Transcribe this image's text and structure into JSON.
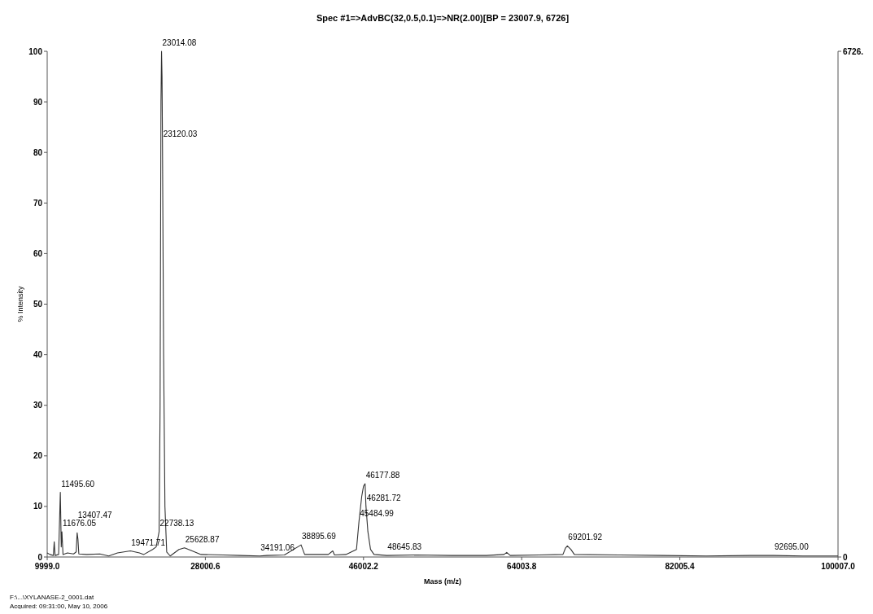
{
  "chart_data": {
    "type": "line",
    "title": "Spec #1=>AdvBC(32,0.5,0.1)=>NR(2.00)[BP = 23007.9, 6726]",
    "xlabel": "Mass (m/z)",
    "ylabel": "% Intensity",
    "x": [
      9999,
      10300,
      10700,
      10800,
      10900,
      11300,
      11495.6,
      11600,
      11676,
      11800,
      12300,
      13000,
      13300,
      13407,
      13500,
      13600,
      14500,
      16000,
      17000,
      18000,
      19471,
      20500,
      21000,
      22000,
      22400,
      22738,
      22850,
      22950,
      23014.08,
      23070,
      23120,
      23250,
      23400,
      23600,
      24000,
      25000,
      25628,
      26500,
      27500,
      30000,
      32000,
      34191,
      35000,
      37000,
      38895,
      39300,
      42000,
      42500,
      42700,
      44000,
      45200,
      45485,
      45800,
      46000,
      46177.88,
      46281.72,
      46500,
      46800,
      47200,
      48645,
      52000,
      56000,
      60000,
      62000,
      62300,
      62700,
      66000,
      68700,
      69000,
      69201.92,
      69600,
      70000,
      75000,
      80000,
      85000,
      90000,
      92695,
      96000,
      100007
    ],
    "series": [
      {
        "color": "#333333",
        "values": [
          0.8,
          0.5,
          0.3,
          3,
          0.3,
          0.5,
          12.8,
          2,
          5,
          0.5,
          0.8,
          0.6,
          1,
          4.8,
          3.5,
          0.6,
          0.5,
          0.6,
          0.2,
          0.8,
          1.2,
          0.8,
          0.5,
          1.5,
          2,
          5,
          30,
          90,
          100,
          95,
          82,
          40,
          10,
          1,
          0.2,
          1.5,
          1.8,
          1.2,
          0.5,
          0.4,
          0.3,
          0.2,
          0.3,
          0.4,
          2.4,
          0.5,
          0.5,
          1.2,
          0.4,
          0.5,
          1.5,
          7,
          12,
          14,
          14.5,
          10,
          5,
          1.5,
          0.5,
          0.3,
          0.4,
          0.3,
          0.3,
          0.5,
          0.9,
          0.3,
          0.4,
          0.5,
          1.8,
          2.2,
          1.5,
          0.5,
          0.4,
          0.3,
          0.2,
          0.3,
          0.3,
          0.2,
          0.2
        ]
      }
    ],
    "xlim": [
      9999,
      100007
    ],
    "xticks": [
      {
        "value": 9999,
        "label": "9999.0"
      },
      {
        "value": 28000.6,
        "label": "28000.6"
      },
      {
        "value": 46002.2,
        "label": "46002.2"
      },
      {
        "value": 64003.8,
        "label": "64003.8"
      },
      {
        "value": 82005.4,
        "label": "82005.4"
      },
      {
        "value": 100007,
        "label": "100007.0"
      }
    ],
    "ylim": [
      0,
      100
    ],
    "yticks": [
      0,
      10,
      20,
      30,
      40,
      50,
      60,
      70,
      80,
      90,
      100
    ],
    "y2lim": [
      0,
      6726
    ],
    "y2ticks": [
      0,
      {
        "value": 6726,
        "label": "6726."
      }
    ],
    "grid": false,
    "annotations": [
      {
        "text": "23014.08",
        "x": 23014.08,
        "y": 100
      },
      {
        "text": "23120.03",
        "x": 23120.03,
        "y": 82
      },
      {
        "text": "22738.13",
        "x": 22738.13,
        "y": 5
      },
      {
        "text": "11495.60",
        "x": 11495.6,
        "y": 12.8
      },
      {
        "text": "11676.05",
        "x": 11676.05,
        "y": 5
      },
      {
        "text": "13407.47",
        "x": 13407.47,
        "y": 4.8
      },
      {
        "text": "19471.71",
        "x": 19471.71,
        "y": 1.2
      },
      {
        "text": "25628.87",
        "x": 25628.87,
        "y": 1.8
      },
      {
        "text": "34191.06",
        "x": 34191.06,
        "y": 0.2
      },
      {
        "text": "38895.69",
        "x": 38895.69,
        "y": 2.4
      },
      {
        "text": "46177.88",
        "x": 46177.88,
        "y": 14.5
      },
      {
        "text": "46281.72",
        "x": 46281.72,
        "y": 10
      },
      {
        "text": "45484.99",
        "x": 45484.99,
        "y": 7
      },
      {
        "text": "48645.83",
        "x": 48645.83,
        "y": 0.3
      },
      {
        "text": "69201.92",
        "x": 69201.92,
        "y": 2.2
      },
      {
        "text": "92695.00",
        "x": 92695,
        "y": 0.3
      },
      "F:\\...\\XYLANASE-2_0001.dat",
      "Acquired: 09:31:00, May 10, 2006"
    ]
  }
}
